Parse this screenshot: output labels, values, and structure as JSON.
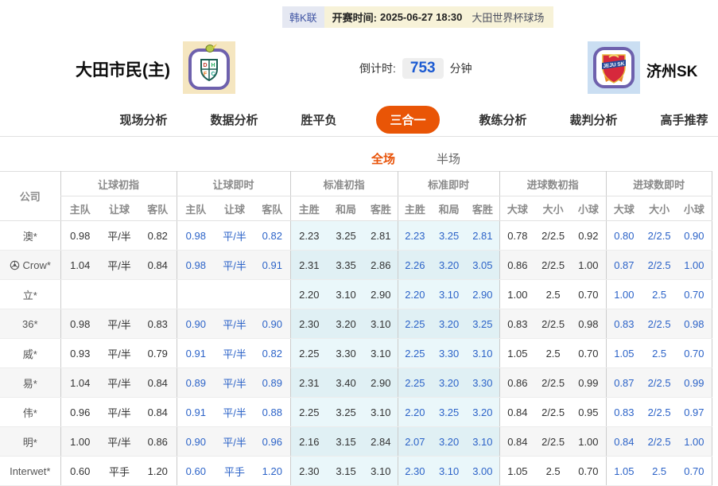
{
  "topbar": {
    "league": "韩K联",
    "kickoff_label": "开赛时间:",
    "kickoff_time": "2025-06-27 18:30",
    "venue": "大田世界杯球场"
  },
  "teams": {
    "home_name": "大田市民(主)",
    "home_logo_letters": "DHFC",
    "away_name": "济州SK",
    "away_logo_text": "JEJU SK"
  },
  "countdown": {
    "label": "倒计时:",
    "value": "753",
    "unit": "分钟"
  },
  "nav": {
    "tabs": [
      {
        "label": "现场分析",
        "active": false
      },
      {
        "label": "数据分析",
        "active": false
      },
      {
        "label": "胜平负",
        "active": false
      },
      {
        "label": "三合一",
        "active": true
      },
      {
        "label": "教练分析",
        "active": false
      },
      {
        "label": "裁判分析",
        "active": false
      },
      {
        "label": "高手推荐",
        "active": false
      }
    ]
  },
  "subtabs": [
    {
      "label": "全场",
      "active": true
    },
    {
      "label": "半场",
      "active": false
    }
  ],
  "colors": {
    "accent_orange": "#e95506",
    "live_blue": "#2c63c8",
    "topbar_yellow": "#f7f2d8",
    "tint_cyan": "#ecf7fa"
  },
  "odds_table": {
    "company_header": "公司",
    "groups": [
      {
        "label": "让球初指",
        "cols": [
          "主队",
          "让球",
          "客队"
        ],
        "live": false,
        "tint": false
      },
      {
        "label": "让球即时",
        "cols": [
          "主队",
          "让球",
          "客队"
        ],
        "live": true,
        "tint": false
      },
      {
        "label": "标准初指",
        "cols": [
          "主胜",
          "和局",
          "客胜"
        ],
        "live": false,
        "tint": true
      },
      {
        "label": "标准即时",
        "cols": [
          "主胜",
          "和局",
          "客胜"
        ],
        "live": true,
        "tint": true
      },
      {
        "label": "进球数初指",
        "cols": [
          "大球",
          "大小",
          "小球"
        ],
        "live": false,
        "tint": false
      },
      {
        "label": "进球数即时",
        "cols": [
          "大球",
          "大小",
          "小球"
        ],
        "live": true,
        "tint": false
      }
    ],
    "rows": [
      {
        "company": "澳*",
        "icon": false,
        "values": [
          [
            "0.98",
            "平/半",
            "0.82"
          ],
          [
            "0.98",
            "平/半",
            "0.82"
          ],
          [
            "2.23",
            "3.25",
            "2.81"
          ],
          [
            "2.23",
            "3.25",
            "2.81"
          ],
          [
            "0.78",
            "2/2.5",
            "0.92"
          ],
          [
            "0.80",
            "2/2.5",
            "0.90"
          ]
        ]
      },
      {
        "company": "Crow*",
        "icon": true,
        "values": [
          [
            "1.04",
            "平/半",
            "0.84"
          ],
          [
            "0.98",
            "平/半",
            "0.91"
          ],
          [
            "2.31",
            "3.35",
            "2.86"
          ],
          [
            "2.26",
            "3.20",
            "3.05"
          ],
          [
            "0.86",
            "2/2.5",
            "1.00"
          ],
          [
            "0.87",
            "2/2.5",
            "1.00"
          ]
        ]
      },
      {
        "company": "立*",
        "icon": false,
        "values": [
          [
            "",
            "",
            ""
          ],
          [
            "",
            "",
            ""
          ],
          [
            "2.20",
            "3.10",
            "2.90"
          ],
          [
            "2.20",
            "3.10",
            "2.90"
          ],
          [
            "1.00",
            "2.5",
            "0.70"
          ],
          [
            "1.00",
            "2.5",
            "0.70"
          ]
        ]
      },
      {
        "company": "36*",
        "icon": false,
        "values": [
          [
            "0.98",
            "平/半",
            "0.83"
          ],
          [
            "0.90",
            "平/半",
            "0.90"
          ],
          [
            "2.30",
            "3.20",
            "3.10"
          ],
          [
            "2.25",
            "3.20",
            "3.25"
          ],
          [
            "0.83",
            "2/2.5",
            "0.98"
          ],
          [
            "0.83",
            "2/2.5",
            "0.98"
          ]
        ]
      },
      {
        "company": "威*",
        "icon": false,
        "values": [
          [
            "0.93",
            "平/半",
            "0.79"
          ],
          [
            "0.91",
            "平/半",
            "0.82"
          ],
          [
            "2.25",
            "3.30",
            "3.10"
          ],
          [
            "2.25",
            "3.30",
            "3.10"
          ],
          [
            "1.05",
            "2.5",
            "0.70"
          ],
          [
            "1.05",
            "2.5",
            "0.70"
          ]
        ]
      },
      {
        "company": "易*",
        "icon": false,
        "values": [
          [
            "1.04",
            "平/半",
            "0.84"
          ],
          [
            "0.89",
            "平/半",
            "0.89"
          ],
          [
            "2.31",
            "3.40",
            "2.90"
          ],
          [
            "2.25",
            "3.20",
            "3.30"
          ],
          [
            "0.86",
            "2/2.5",
            "0.99"
          ],
          [
            "0.87",
            "2/2.5",
            "0.99"
          ]
        ]
      },
      {
        "company": "伟*",
        "icon": false,
        "values": [
          [
            "0.96",
            "平/半",
            "0.84"
          ],
          [
            "0.91",
            "平/半",
            "0.88"
          ],
          [
            "2.25",
            "3.25",
            "3.10"
          ],
          [
            "2.20",
            "3.25",
            "3.20"
          ],
          [
            "0.84",
            "2/2.5",
            "0.95"
          ],
          [
            "0.83",
            "2/2.5",
            "0.97"
          ]
        ]
      },
      {
        "company": "明*",
        "icon": false,
        "values": [
          [
            "1.00",
            "平/半",
            "0.86"
          ],
          [
            "0.90",
            "平/半",
            "0.96"
          ],
          [
            "2.16",
            "3.15",
            "2.84"
          ],
          [
            "2.07",
            "3.20",
            "3.10"
          ],
          [
            "0.84",
            "2/2.5",
            "1.00"
          ],
          [
            "0.84",
            "2/2.5",
            "1.00"
          ]
        ]
      },
      {
        "company": "Interwet*",
        "icon": false,
        "values": [
          [
            "0.60",
            "平手",
            "1.20"
          ],
          [
            "0.60",
            "平手",
            "1.20"
          ],
          [
            "2.30",
            "3.15",
            "3.10"
          ],
          [
            "2.30",
            "3.10",
            "3.00"
          ],
          [
            "1.05",
            "2.5",
            "0.70"
          ],
          [
            "1.05",
            "2.5",
            "0.70"
          ]
        ]
      }
    ]
  }
}
